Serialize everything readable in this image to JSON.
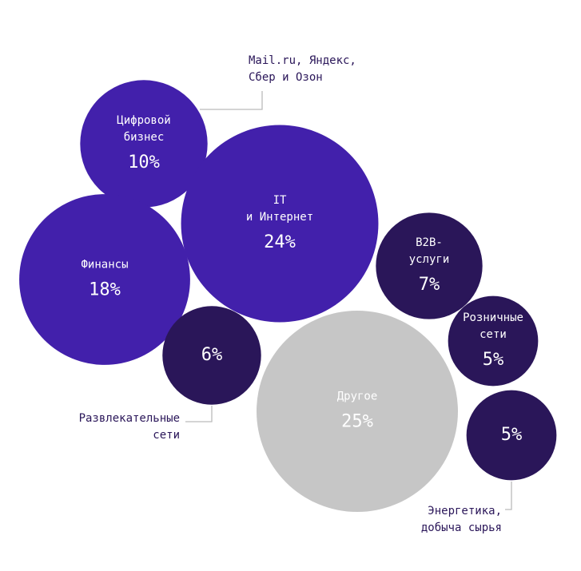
{
  "chart_data": {
    "type": "bubble",
    "categories": [
      "Цифровой\nбизнес",
      "IT\nи Интернет",
      "Финансы",
      "B2B-\nуслуги",
      "Розничные\nсети",
      "Развлекательные\nсети",
      "Другое",
      "Энергетика,\nдобыча сырья"
    ],
    "values": [
      10,
      24,
      18,
      7,
      5,
      6,
      25,
      5
    ],
    "value_labels": [
      "10%",
      "24%",
      "18%",
      "7%",
      "5%",
      "6%",
      "25%",
      "5%"
    ],
    "colors": [
      "#4220ab",
      "#4220ab",
      "#4220ab",
      "#2a1659",
      "#2a1659",
      "#2a1659",
      "#c6c6c6",
      "#2a1659"
    ],
    "annotation": "Mail.ru, Яндекс,\nСбер и Озон"
  }
}
